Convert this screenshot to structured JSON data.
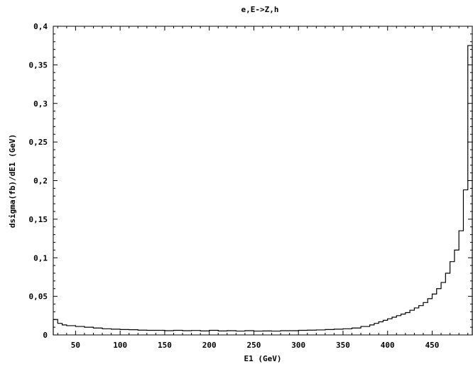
{
  "chart_data": {
    "type": "line",
    "title": "e,E->Z,h",
    "xlabel": "E1 (GeV)",
    "ylabel": "dsigma(fb)/dE1 (GeV)",
    "xlim": [
      25,
      495
    ],
    "ylim": [
      0,
      0.4
    ],
    "xticks": [
      50,
      100,
      150,
      200,
      250,
      300,
      350,
      400,
      450
    ],
    "xtick_labels": [
      "50",
      "100",
      "150",
      "200",
      "250",
      "300",
      "350",
      "400",
      "450"
    ],
    "yticks": [
      0,
      0.05,
      0.1,
      0.15,
      0.2,
      0.25,
      0.3,
      0.35,
      0.4
    ],
    "ytick_labels": [
      "0",
      "0,05",
      "0,1",
      "0,15",
      "0,2",
      "0,25",
      "0,3",
      "0,35",
      "0,4"
    ],
    "grid": false,
    "series": [
      {
        "style": "step",
        "color": "#000000",
        "bin_edges": [
          25,
          30,
          35,
          40,
          50,
          60,
          70,
          80,
          90,
          100,
          110,
          120,
          130,
          140,
          150,
          160,
          170,
          180,
          190,
          200,
          210,
          220,
          230,
          240,
          250,
          260,
          270,
          280,
          290,
          300,
          310,
          320,
          330,
          340,
          350,
          360,
          370,
          380,
          385,
          390,
          395,
          400,
          405,
          410,
          415,
          420,
          425,
          430,
          435,
          440,
          445,
          450,
          455,
          460,
          465,
          470,
          475,
          480,
          485,
          490,
          495
        ],
        "values": [
          0.02,
          0.015,
          0.013,
          0.012,
          0.011,
          0.01,
          0.009,
          0.008,
          0.0075,
          0.007,
          0.0068,
          0.0062,
          0.006,
          0.006,
          0.0055,
          0.006,
          0.0055,
          0.0058,
          0.0052,
          0.006,
          0.0052,
          0.0055,
          0.005,
          0.0055,
          0.005,
          0.0052,
          0.005,
          0.0055,
          0.0055,
          0.006,
          0.0062,
          0.0065,
          0.007,
          0.0075,
          0.008,
          0.009,
          0.011,
          0.013,
          0.015,
          0.017,
          0.019,
          0.021,
          0.023,
          0.025,
          0.027,
          0.029,
          0.032,
          0.035,
          0.038,
          0.042,
          0.047,
          0.053,
          0.06,
          0.068,
          0.08,
          0.095,
          0.11,
          0.135,
          0.188,
          0.375
        ]
      }
    ]
  }
}
